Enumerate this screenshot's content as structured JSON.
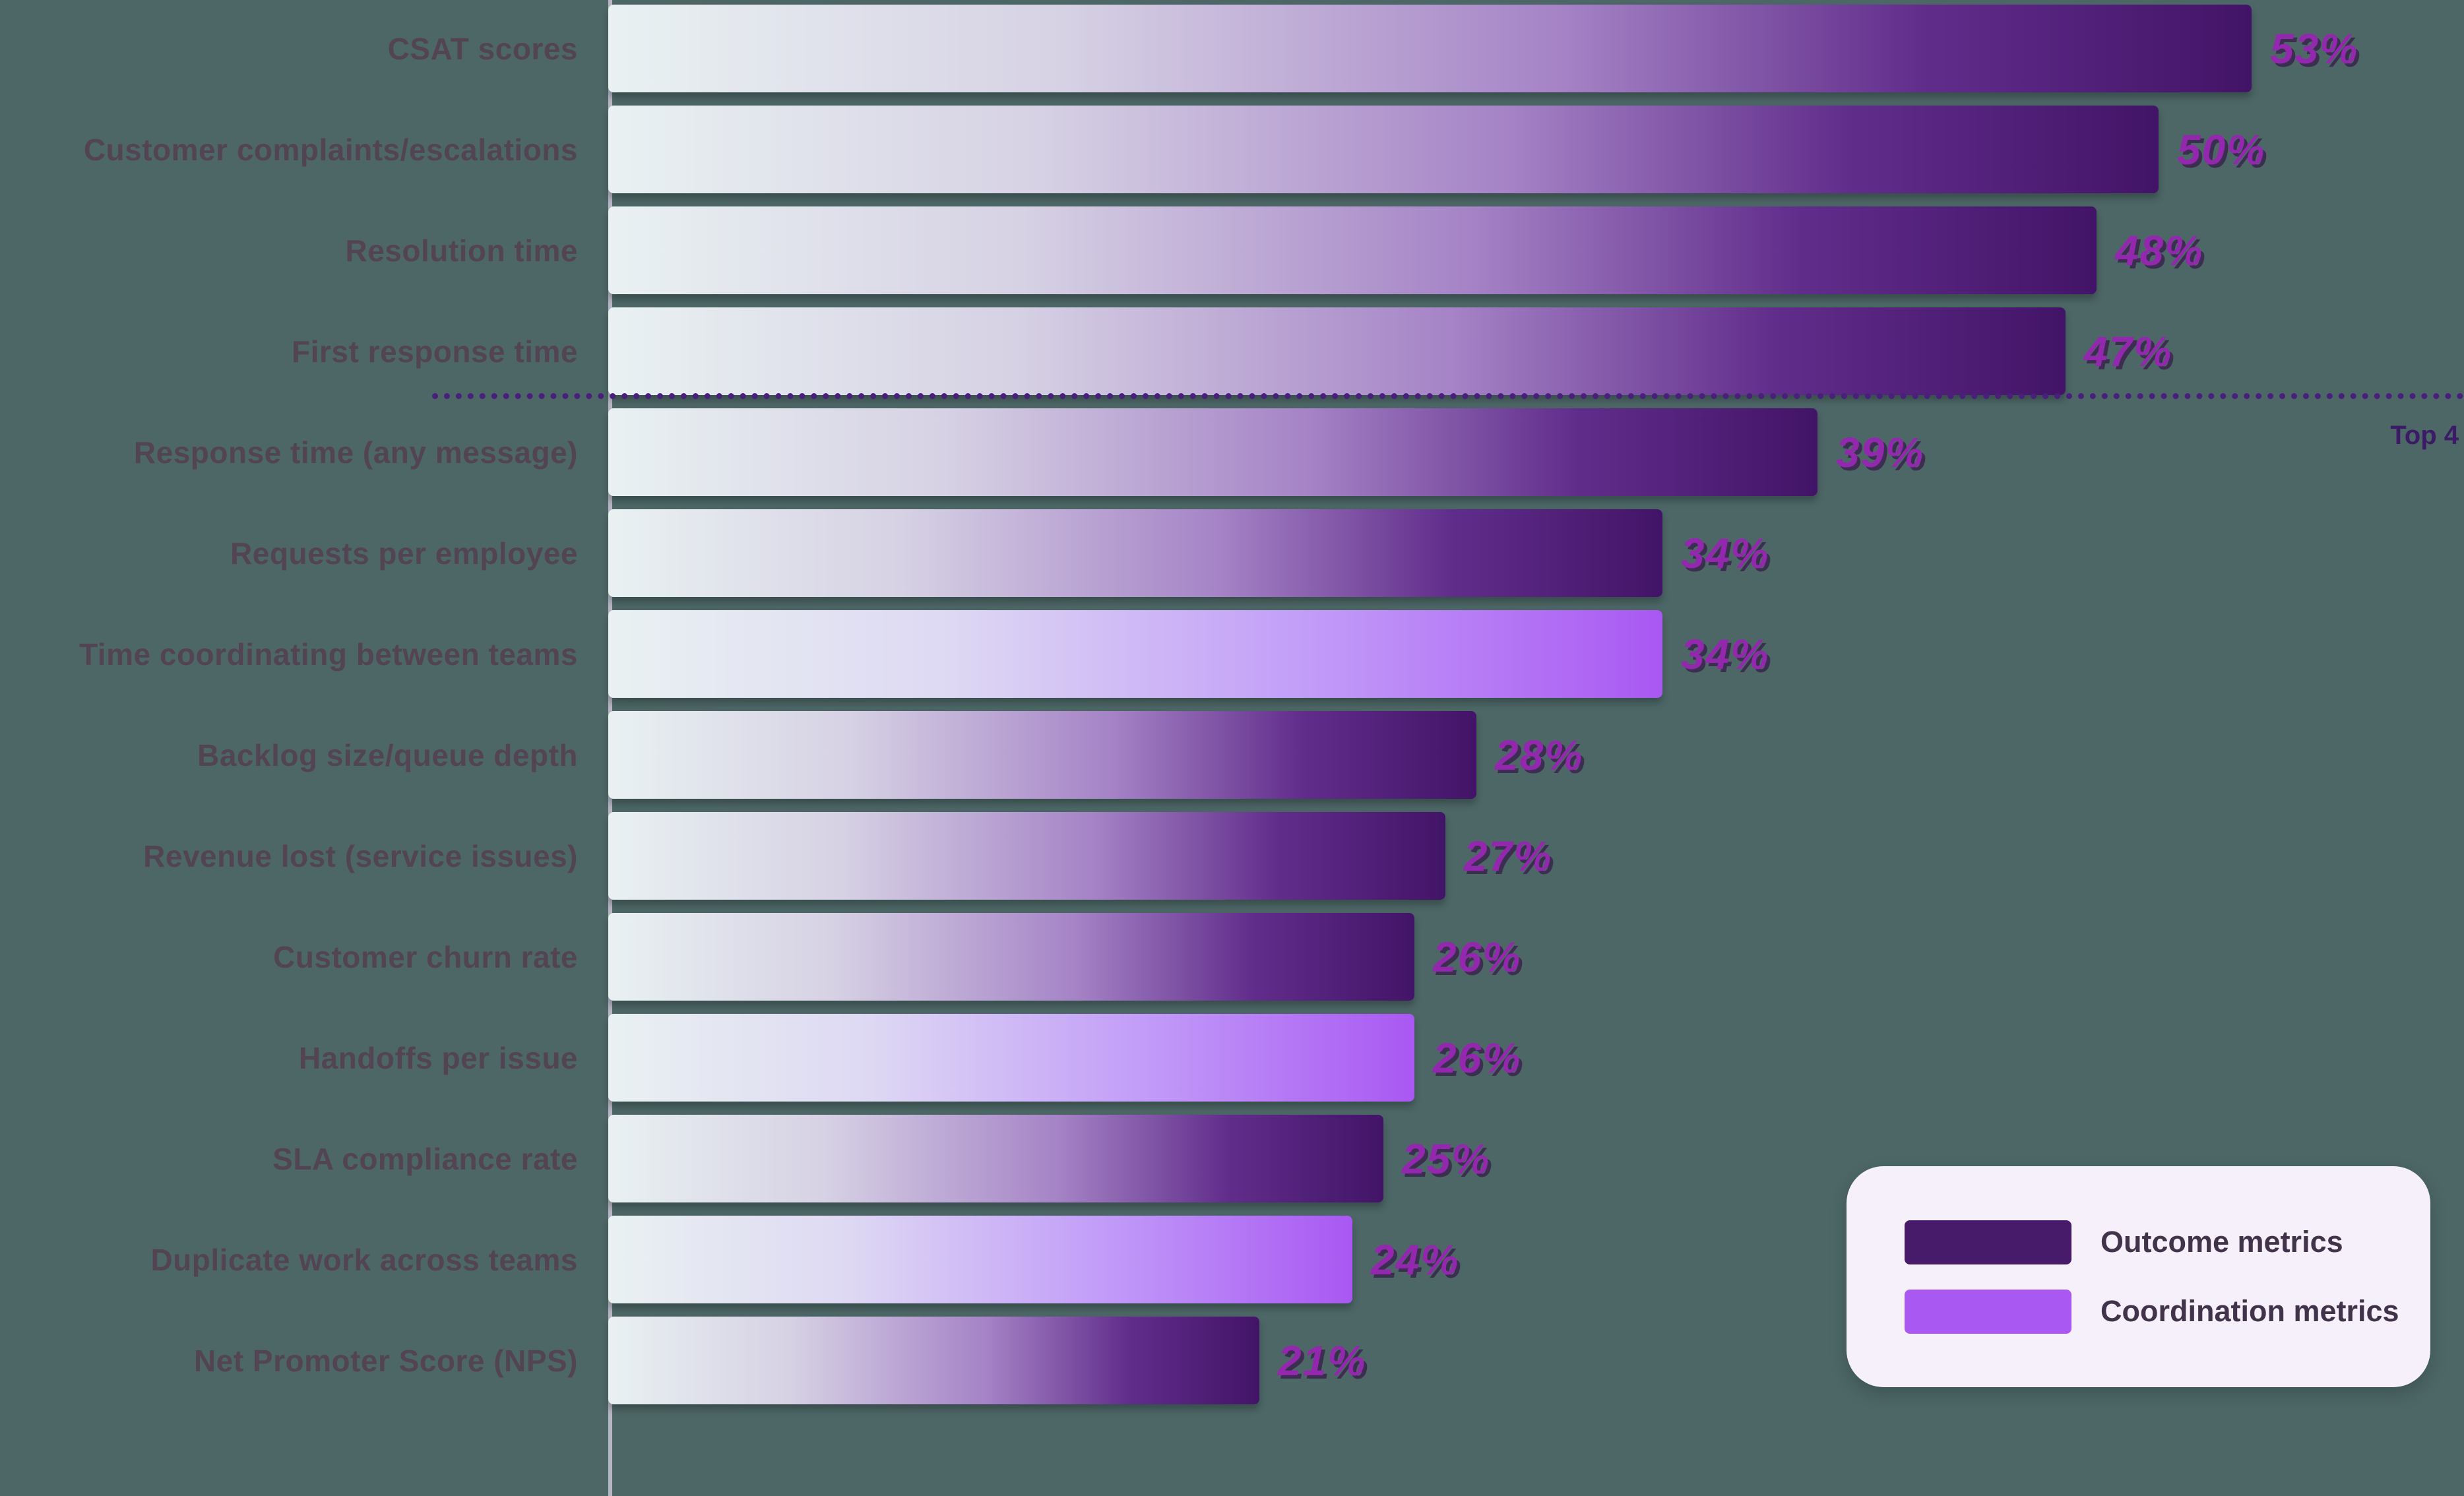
{
  "background_color": "#4d6766",
  "chart_data": {
    "type": "bar",
    "orientation": "horizontal",
    "unit": "%",
    "title": "",
    "xlabel": "",
    "ylabel": "",
    "xlim": [
      0,
      56
    ],
    "grid": false,
    "categories": [
      "CSAT scores",
      "Customer complaints/escalations",
      "Resolution time",
      "First response time",
      "Response time (any message)",
      "Requests per employee",
      "Time coordinating between teams",
      "Backlog size/queue depth",
      "Revenue lost (service issues)",
      "Customer churn rate",
      "Handoffs per issue",
      "SLA compliance rate",
      "Duplicate work across teams",
      "Net Promoter Score (NPS)"
    ],
    "values": [
      53,
      50,
      48,
      47,
      39,
      34,
      34,
      28,
      27,
      26,
      26,
      25,
      24,
      21
    ],
    "value_labels": [
      "53%",
      "50%",
      "48%",
      "47%",
      "39%",
      "34%",
      "34%",
      "28%",
      "27%",
      "26%",
      "26%",
      "25%",
      "24%",
      "21%"
    ],
    "series_type": [
      "outcome",
      "outcome",
      "outcome",
      "outcome",
      "outcome",
      "outcome",
      "coordination",
      "outcome",
      "outcome",
      "outcome",
      "coordination",
      "outcome",
      "coordination",
      "outcome"
    ],
    "annotation": "Top 4",
    "legend_position": "bottom-right",
    "legend": [
      {
        "label": "Outcome metrics",
        "color": "#471b69",
        "type": "outcome"
      },
      {
        "label": "Coordination metrics",
        "color": "#a958f2",
        "type": "coordination"
      }
    ],
    "colors": {
      "bar_gradient_start": "#e9f1f2",
      "outcome_end": "#421467",
      "coordination_end": "#a958f2",
      "value_label": "#9327ae",
      "category_label": "#524452",
      "divider": "#48207c",
      "axis_line": "#cdc4d6"
    }
  }
}
